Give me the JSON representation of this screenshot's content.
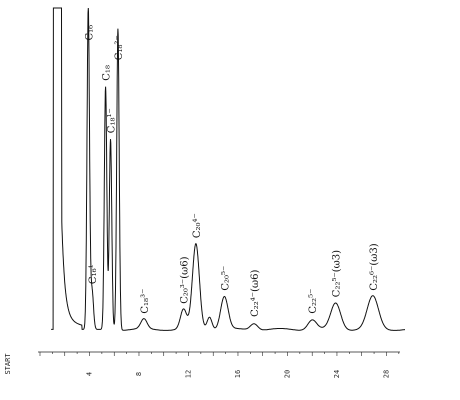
{
  "chart_data": {
    "type": "line",
    "title": "",
    "xlabel": "",
    "ylabel": "",
    "start_label": "START",
    "x_ticks": [
      "4",
      "8",
      "12",
      "16",
      "20",
      "24",
      "28"
    ],
    "xlim": [
      0,
      29.5
    ],
    "ylim": [
      0,
      100
    ],
    "baseline": 2,
    "solvent_front": {
      "x": 1.2,
      "height": 100
    },
    "peaks": [
      {
        "x": 3.9,
        "height": 98,
        "width": 0.1
      },
      {
        "x": 4.2,
        "height": 12,
        "width": 0.12
      },
      {
        "x": 5.3,
        "height": 74,
        "width": 0.1
      },
      {
        "x": 5.7,
        "height": 58,
        "width": 0.1
      },
      {
        "x": 6.3,
        "height": 92,
        "width": 0.1
      },
      {
        "x": 8.4,
        "height": 3,
        "width": 0.25
      },
      {
        "x": 11.6,
        "height": 6,
        "width": 0.25
      },
      {
        "x": 12.6,
        "height": 26,
        "width": 0.28
      },
      {
        "x": 13.7,
        "height": 4,
        "width": 0.2
      },
      {
        "x": 14.9,
        "height": 10,
        "width": 0.3
      },
      {
        "x": 17.3,
        "height": 2,
        "width": 0.3
      },
      {
        "x": 22.0,
        "height": 3,
        "width": 0.35
      },
      {
        "x": 23.9,
        "height": 8,
        "width": 0.4
      },
      {
        "x": 26.9,
        "height": 10,
        "width": 0.45
      }
    ],
    "labels": [
      {
        "text": "C₁₆",
        "x": 3.9
      },
      {
        "text": "C₁₆¹⁻",
        "x": 4.2
      },
      {
        "text": "C₁₈",
        "x": 5.3
      },
      {
        "text": "C₁₈¹⁻",
        "x": 5.7
      },
      {
        "text": "C₁₈²⁻",
        "x": 6.3
      },
      {
        "text": "C₁₈³⁻",
        "x": 8.4
      },
      {
        "text": "C₂₀³⁻(ω6)",
        "x": 11.6
      },
      {
        "text": "C₂₀⁴⁻",
        "x": 12.6
      },
      {
        "text": "C₂₀⁵⁻",
        "x": 14.9
      },
      {
        "text": "C₂₂⁴⁻(ω6)",
        "x": 17.3
      },
      {
        "text": "C₂₂⁵⁻",
        "x": 22.0
      },
      {
        "text": "C₂₂⁵⁻(ω3)",
        "x": 23.9
      },
      {
        "text": "C₂₂⁶⁻(ω3)",
        "x": 26.9
      }
    ]
  }
}
